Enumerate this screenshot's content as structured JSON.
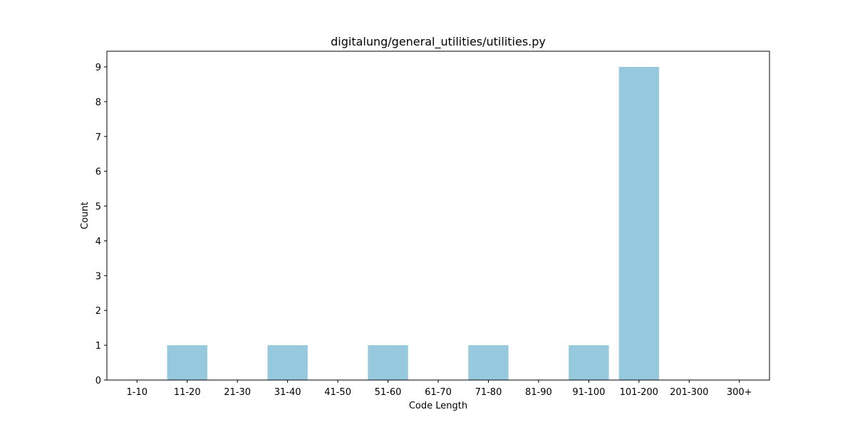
{
  "chart_data": {
    "type": "bar",
    "title": "digitalung/general_utilities/utilities.py",
    "xlabel": "Code Length",
    "ylabel": "Count",
    "categories": [
      "1-10",
      "11-20",
      "21-30",
      "31-40",
      "41-50",
      "51-60",
      "61-70",
      "71-80",
      "81-90",
      "91-100",
      "101-200",
      "201-300",
      "300+"
    ],
    "values": [
      0,
      1,
      0,
      1,
      0,
      1,
      0,
      1,
      0,
      1,
      9,
      0,
      0
    ],
    "ylim": [
      0,
      9.45
    ],
    "yticks": [
      "0",
      "1",
      "2",
      "3",
      "4",
      "5",
      "6",
      "7",
      "8",
      "9"
    ],
    "grid": false,
    "colors": {
      "bar": "#96c9dd",
      "axis": "#000000"
    }
  }
}
